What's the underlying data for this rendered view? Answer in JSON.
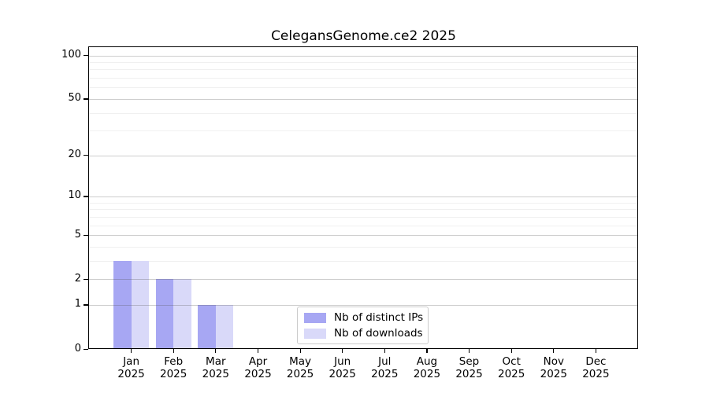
{
  "chart_data": {
    "type": "bar",
    "title": "CelegansGenome.ce2 2025",
    "x": {
      "months": [
        "Jan",
        "Feb",
        "Mar",
        "Apr",
        "May",
        "Jun",
        "Jul",
        "Aug",
        "Sep",
        "Oct",
        "Nov",
        "Dec"
      ],
      "year": "2025"
    },
    "y": {
      "scale": "log10(1+v)",
      "major_ticks": [
        0,
        1,
        2,
        5,
        10,
        20,
        50,
        100
      ],
      "minor_ticks": [
        3,
        4,
        6,
        7,
        8,
        9,
        30,
        40,
        60,
        70,
        80,
        90
      ],
      "ylim": [
        0,
        114
      ],
      "grid": "on"
    },
    "series": [
      {
        "name": "Nb of distinct IPs",
        "color": "#a7a7f3",
        "values": [
          3,
          2,
          1,
          0,
          0,
          0,
          0,
          0,
          0,
          0,
          0,
          0
        ]
      },
      {
        "name": "Nb of downloads",
        "color": "#d9d9f9",
        "values": [
          3,
          2,
          1,
          0,
          0,
          0,
          0,
          0,
          0,
          0,
          0,
          0
        ]
      }
    ],
    "legend": {
      "position": "bottom-center"
    },
    "colors": {
      "axis": "#000000",
      "major_grid": "#cccccc",
      "minor_grid": "#f0f0f0",
      "background": "#ffffff"
    }
  }
}
